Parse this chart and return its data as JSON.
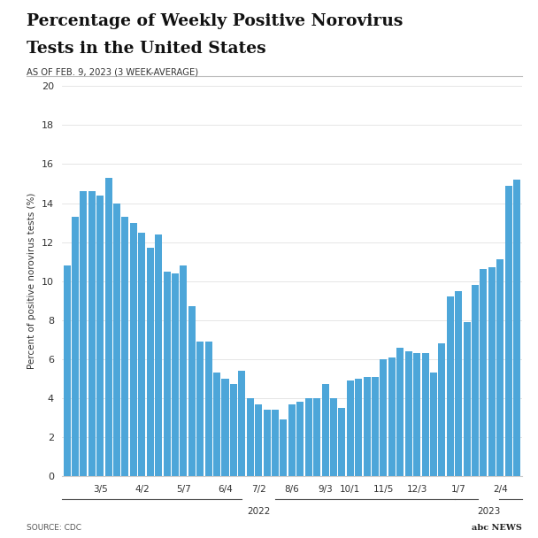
{
  "title_line1": "Percentage of Weekly Positive Norovirus",
  "title_line2": "Tests in the United States",
  "subtitle": "AS OF FEB. 9, 2023 (3 WEEK-AVERAGE)",
  "ylabel": "Percent of positive norovirus tests (%)",
  "source": "SOURCE: CDC",
  "bar_color": "#4da6d9",
  "background_color": "#ffffff",
  "ylim": [
    0,
    20
  ],
  "yticks": [
    0,
    2,
    4,
    6,
    8,
    10,
    12,
    14,
    16,
    18,
    20
  ],
  "x_tick_labels": [
    "3/5",
    "4/2",
    "5/7",
    "6/4",
    "7/2",
    "8/6",
    "9/3",
    "10/1",
    "11/5",
    "12/3",
    "1/7",
    "2/4"
  ],
  "values": [
    10.8,
    13.3,
    14.6,
    14.6,
    14.4,
    15.3,
    14.0,
    13.3,
    13.0,
    12.5,
    11.7,
    12.4,
    10.5,
    10.4,
    10.8,
    8.7,
    6.9,
    6.9,
    5.3,
    5.0,
    4.7,
    5.4,
    4.0,
    3.7,
    3.4,
    3.4,
    2.9,
    3.7,
    3.8,
    4.0,
    4.0,
    4.7,
    4.0,
    3.5,
    4.9,
    5.0,
    5.1,
    5.1,
    6.0,
    6.1,
    6.6,
    6.4,
    6.3,
    6.3,
    5.3,
    6.8,
    9.2,
    9.5,
    7.9,
    9.8,
    10.6,
    10.7,
    11.1,
    14.9,
    15.2
  ],
  "x_tick_positions": [
    4,
    9,
    14,
    19,
    23,
    27,
    31,
    34,
    38,
    42,
    47,
    52
  ]
}
